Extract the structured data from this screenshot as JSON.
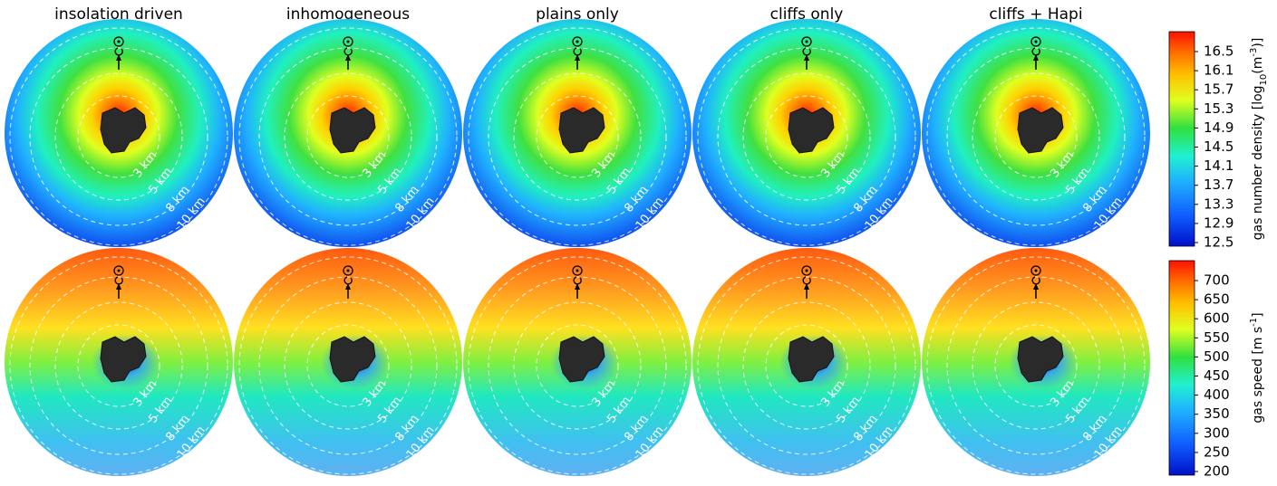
{
  "titles": [
    "insolation driven",
    "inhomogeneous",
    "plains only",
    "cliffs only",
    "cliffs + Hapi"
  ],
  "distance_labels": [
    "3 km",
    "5 km",
    "8 km",
    "10 km"
  ],
  "colorbars": [
    {
      "label": {
        "text": "gas number density [log",
        "sub": "10",
        "mid": "(m",
        "sup": "-3",
        "end": ")]"
      },
      "ticks": [
        12.5,
        12.9,
        13.3,
        13.7,
        14.1,
        14.5,
        14.9,
        15.3,
        15.7,
        16.1,
        16.5
      ]
    },
    {
      "label": {
        "text": "gas speed [m s",
        "sup": "-1",
        "end": "]"
      },
      "ticks": [
        200,
        250,
        300,
        350,
        400,
        450,
        500,
        550,
        600,
        650,
        700
      ]
    }
  ]
}
